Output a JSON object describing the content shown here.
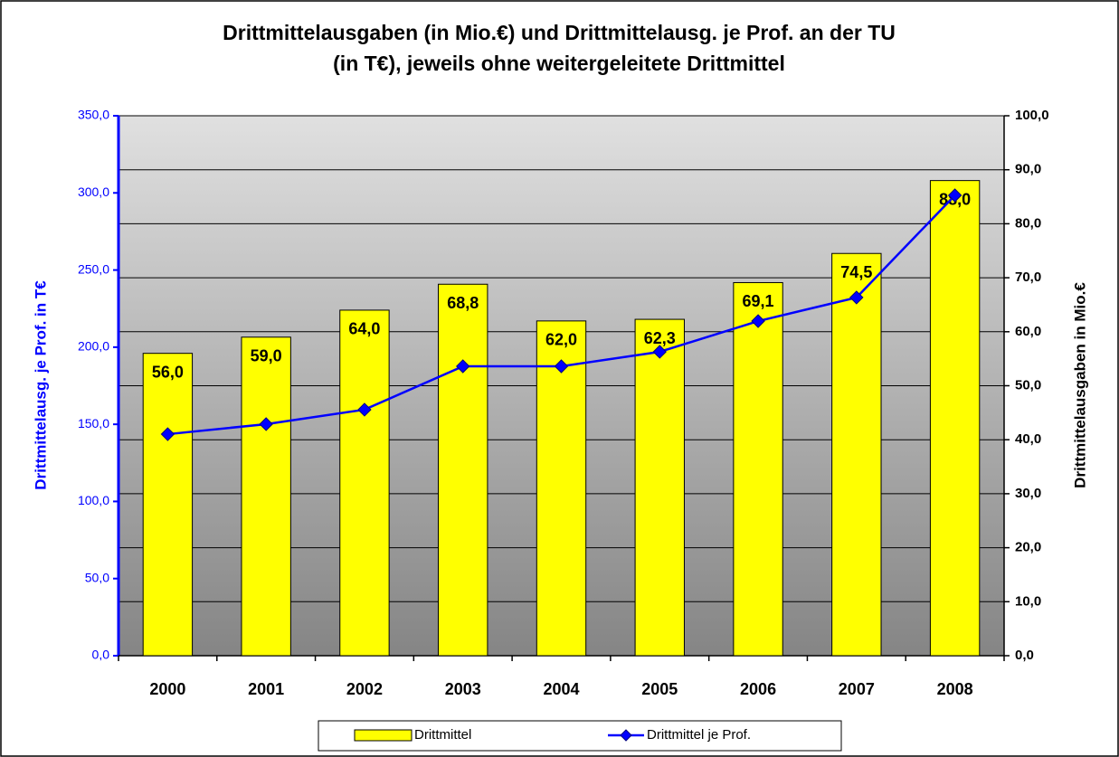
{
  "chart_data": {
    "type": "bar-line",
    "title": [
      "Drittmittelausgaben (in Mio.€) und Drittmittelausg. je Prof. an der TU",
      "(in T€), jeweils ohne weitergeleitete Drittmittel"
    ],
    "y_label": "Drittmittelausg. je Prof. in T€",
    "y2_label": "Drittmittelausgaben in Mio.€",
    "categories": [
      "2000",
      "2001",
      "2002",
      "2003",
      "2004",
      "2005",
      "2006",
      "2007",
      "2008"
    ],
    "series": [
      {
        "name": "Drittmittel",
        "type": "bar",
        "axis": "y2",
        "color": "#ffff00",
        "values": [
          56.0,
          59.0,
          64.0,
          68.8,
          62.0,
          62.3,
          69.1,
          74.5,
          88.0
        ],
        "value_labels": [
          "56,0",
          "59,0",
          "64,0",
          "68,8",
          "62,0",
          "62,3",
          "69,1",
          "74,5",
          "88,0"
        ]
      },
      {
        "name": "Drittmittel je Prof.",
        "type": "line",
        "axis": "y",
        "color": "#0000ff",
        "values": [
          143.6,
          150.1,
          159.5,
          187.6,
          187.6,
          197.0,
          216.9,
          232.2,
          298.4
        ]
      }
    ],
    "ylim": [
      0,
      350
    ],
    "yticks": [
      {
        "value": 0,
        "label": "0,0"
      },
      {
        "value": 50,
        "label": "50,0"
      },
      {
        "value": 100,
        "label": "100,0"
      },
      {
        "value": 150,
        "label": "150,0"
      },
      {
        "value": 200,
        "label": "200,0"
      },
      {
        "value": 250,
        "label": "250,0"
      },
      {
        "value": 300,
        "label": "300,0"
      },
      {
        "value": 350,
        "label": "350,0"
      }
    ],
    "y2lim": [
      0,
      100
    ],
    "y2ticks": [
      {
        "value": 0,
        "label": "0,0"
      },
      {
        "value": 10,
        "label": "10,0"
      },
      {
        "value": 20,
        "label": "20,0"
      },
      {
        "value": 30,
        "label": "30,0"
      },
      {
        "value": 40,
        "label": "40,0"
      },
      {
        "value": 50,
        "label": "50,0"
      },
      {
        "value": 60,
        "label": "60,0"
      },
      {
        "value": 70,
        "label": "70,0"
      },
      {
        "value": 80,
        "label": "80,0"
      },
      {
        "value": 90,
        "label": "90,0"
      },
      {
        "value": 100,
        "label": "100,0"
      }
    ],
    "grid": true,
    "legend": "bottom"
  }
}
